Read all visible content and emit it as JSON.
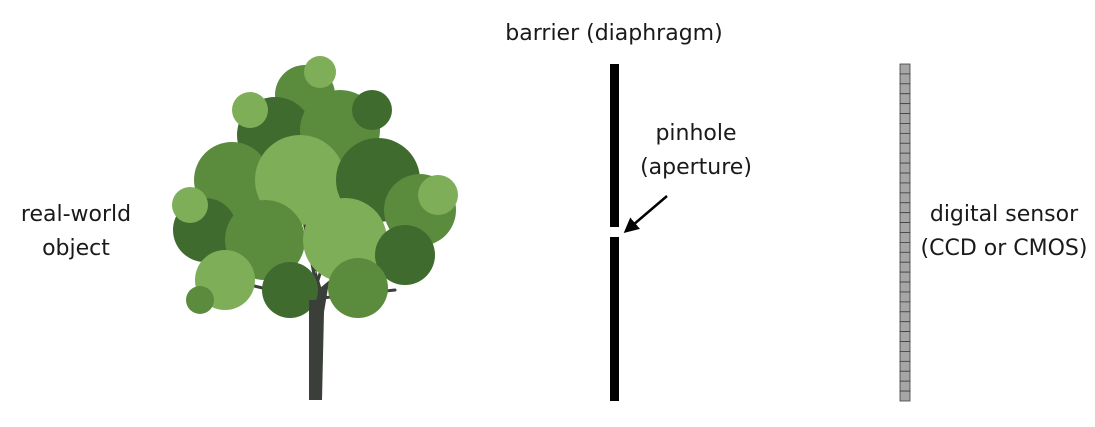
{
  "labels": {
    "object": [
      "real-world",
      "object"
    ],
    "barrier": "barrier (diaphragm)",
    "pinhole": [
      "pinhole",
      "(aperture)"
    ],
    "sensor": [
      "digital sensor",
      "(CCD or CMOS)"
    ]
  },
  "colors": {
    "barrier": "#000000",
    "sensor_fill": "#a6a6a6",
    "sensor_lines": "#3f3f3f",
    "foliage_dark": "#3f6b2e",
    "foliage_mid": "#5b8c3e",
    "foliage_light": "#7fae58",
    "trunk": "#3b3f3a"
  },
  "icons": {
    "tree": "tree-icon",
    "arrow": "arrow-icon"
  }
}
